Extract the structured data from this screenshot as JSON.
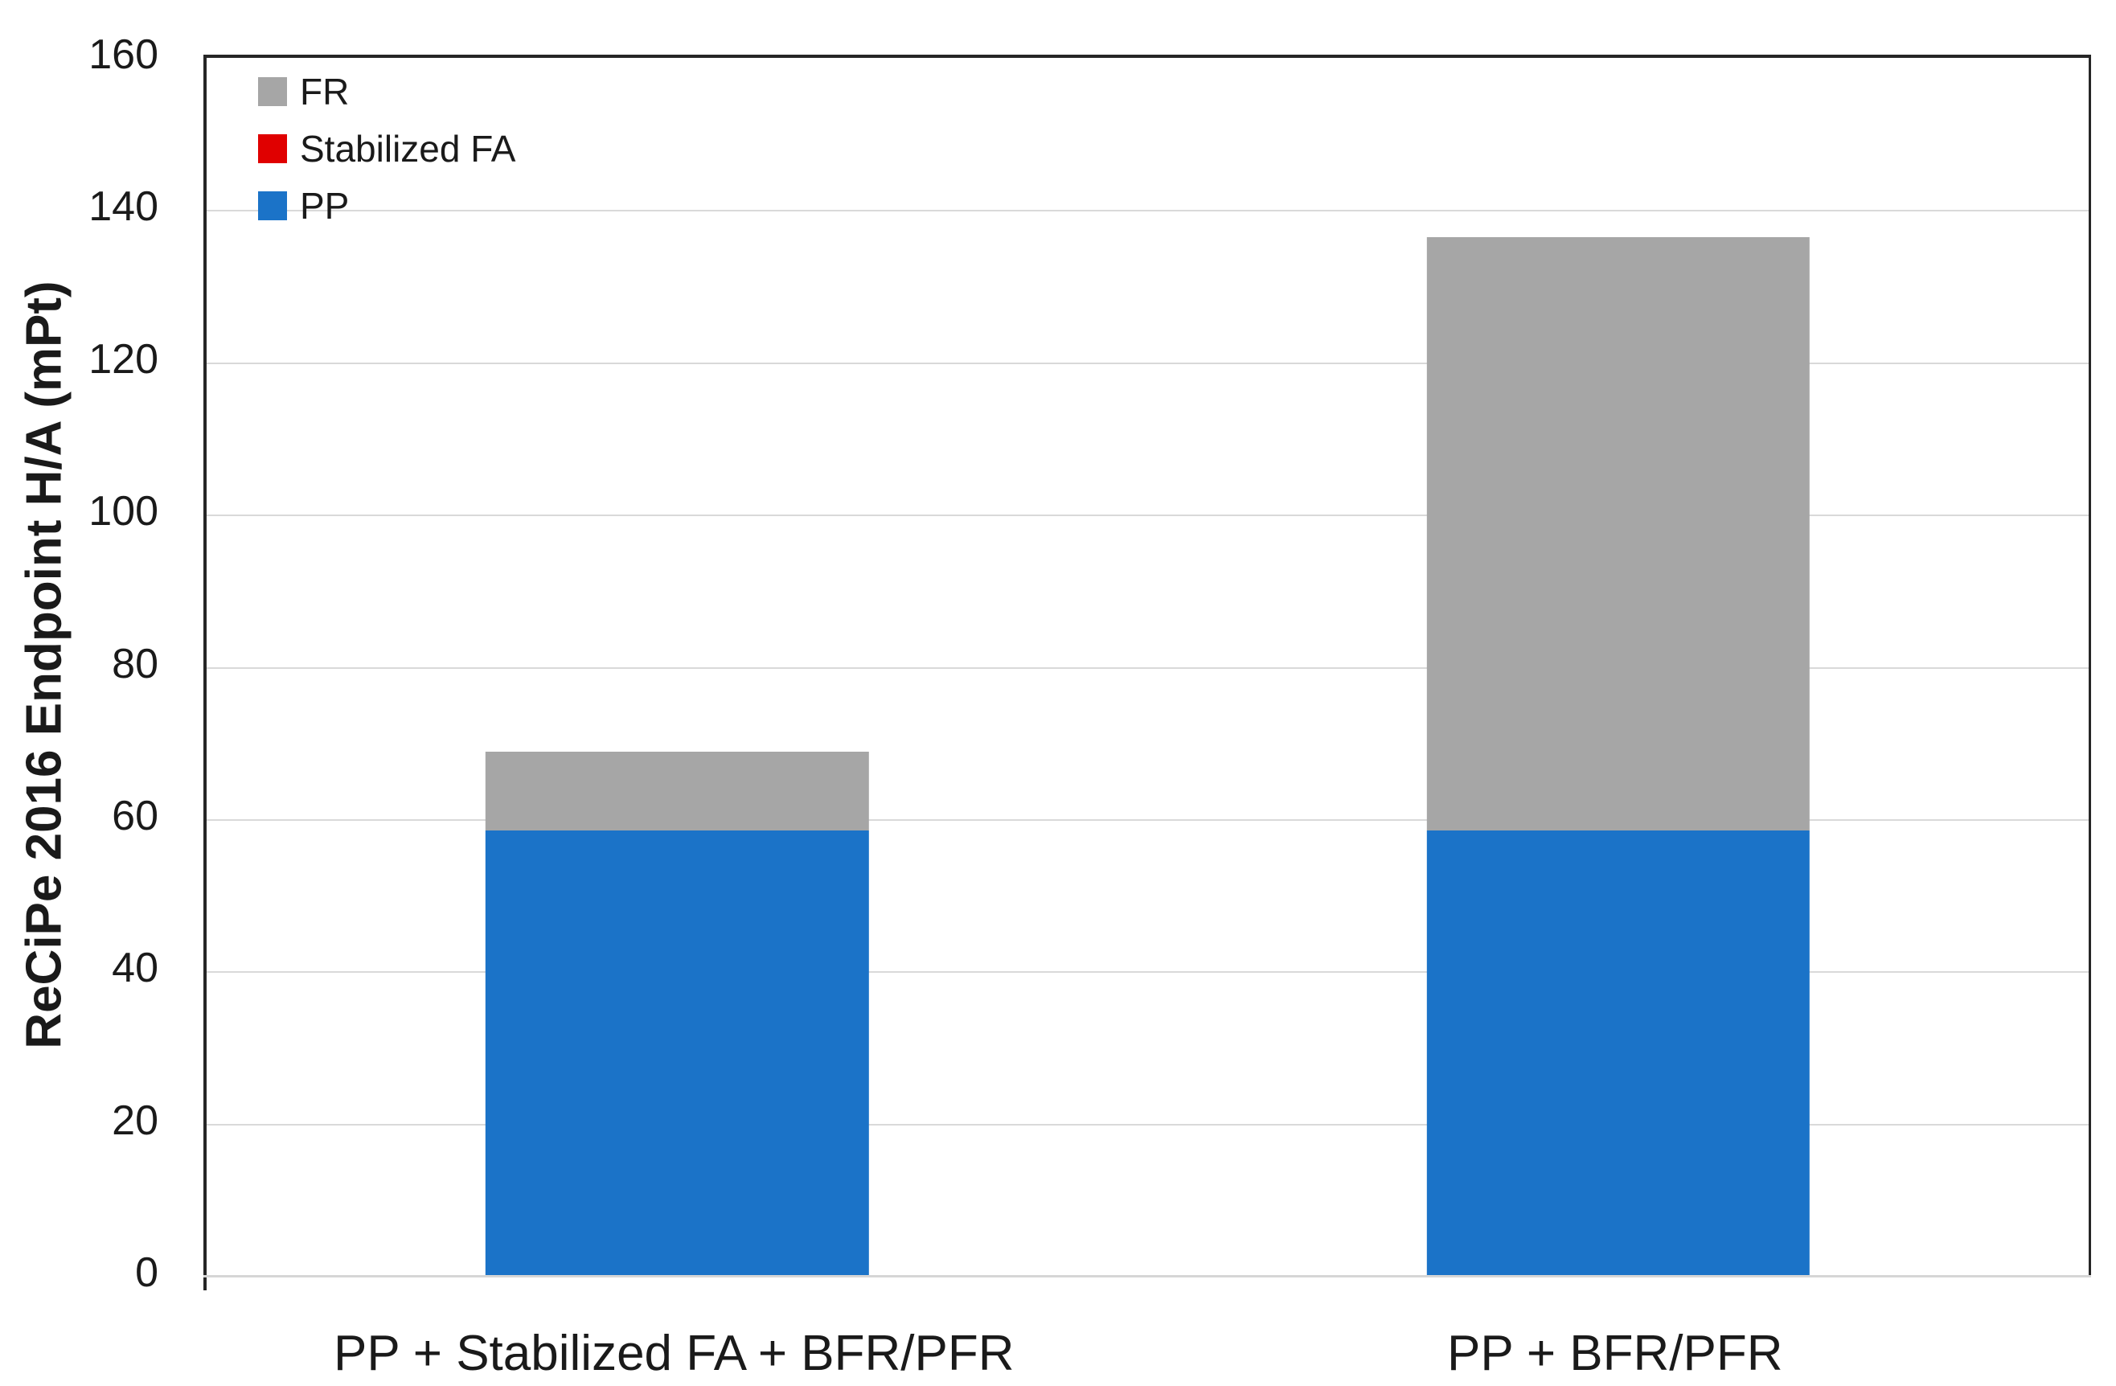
{
  "chart_data": {
    "type": "bar",
    "stacked": true,
    "title": "",
    "xlabel": "",
    "ylabel": "ReCiPe 2016 Endpoint H/A (mPt)",
    "ylim": [
      0,
      160
    ],
    "yticks": [
      0,
      20,
      40,
      60,
      80,
      100,
      120,
      140,
      160
    ],
    "grid": true,
    "categories": [
      "PP + Stabilized FA + BFR/PFR",
      "PP + BFR/PFR"
    ],
    "series": [
      {
        "name": "PP",
        "color": "#1b73c8",
        "values": [
          58.5,
          58.5
        ]
      },
      {
        "name": "Stabilized FA",
        "color": "#e00000",
        "values": [
          0,
          0
        ]
      },
      {
        "name": "FR",
        "color": "#a6a6a6",
        "values": [
          10.4,
          78.0
        ]
      }
    ],
    "totals": [
      68.9,
      136.5
    ],
    "legend": {
      "position": "top-left",
      "order": [
        "FR",
        "Stabilized FA",
        "PP"
      ]
    }
  },
  "colors": {
    "axis_line": "#262626",
    "gridline": "#d9d9d9",
    "baseline": "#d6d6d6",
    "text": "#1a1a1a",
    "background": "#ffffff"
  }
}
